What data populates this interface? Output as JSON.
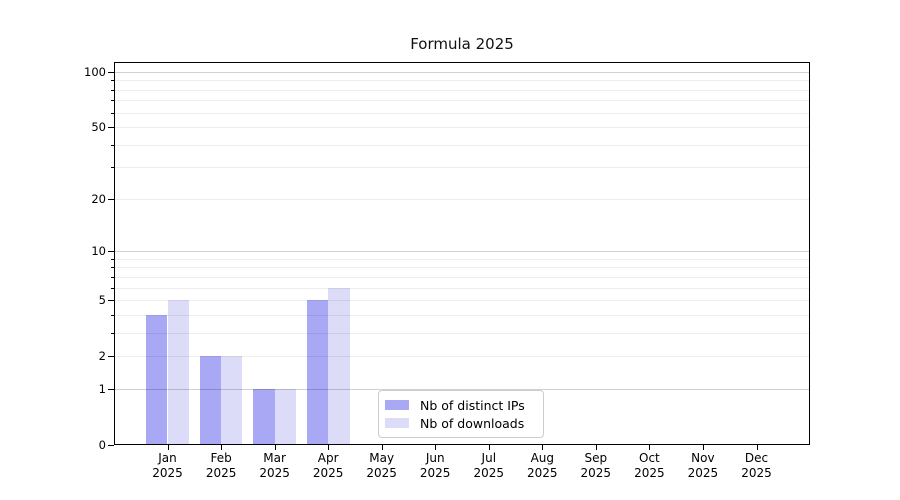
{
  "chart_data": {
    "type": "bar",
    "title": "Formula 2025",
    "categories": [
      "Jan",
      "Feb",
      "Mar",
      "Apr",
      "May",
      "Jun",
      "Jul",
      "Aug",
      "Sep",
      "Oct",
      "Nov",
      "Dec"
    ],
    "year_label": "2025",
    "series": [
      {
        "name": "Nb of distinct IPs",
        "color": "#a8a8f5",
        "values": [
          4,
          2,
          1,
          5,
          0,
          0,
          0,
          0,
          0,
          0,
          0,
          0
        ]
      },
      {
        "name": "Nb of downloads",
        "color": "#dcdcf8",
        "values": [
          5,
          2,
          1,
          6,
          0,
          0,
          0,
          0,
          0,
          0,
          0,
          0
        ]
      }
    ],
    "y_axis": {
      "scale": "log1p",
      "ylim": [
        0,
        113
      ],
      "tick_values": [
        100,
        50,
        20,
        10,
        5,
        2,
        1,
        0
      ],
      "tick_labels": [
        "100",
        "50",
        "20",
        "10",
        "5",
        "2",
        "1",
        "0"
      ],
      "major_grid_values": [
        100,
        10,
        1
      ],
      "minor_grid_values": [
        90,
        80,
        70,
        60,
        50,
        40,
        30,
        20,
        9,
        8,
        7,
        6,
        5,
        4,
        3,
        2
      ],
      "grid": true
    },
    "x_axis": {
      "xlim": [
        -1,
        12
      ]
    },
    "legend": {
      "position": "lower center"
    },
    "colors": {
      "axis": "#000000",
      "major_grid": "#c9c9c9",
      "minor_grid": "#e9e9e9",
      "text": "#000000",
      "legend_border": "#cccccc",
      "background": "#ffffff"
    }
  }
}
